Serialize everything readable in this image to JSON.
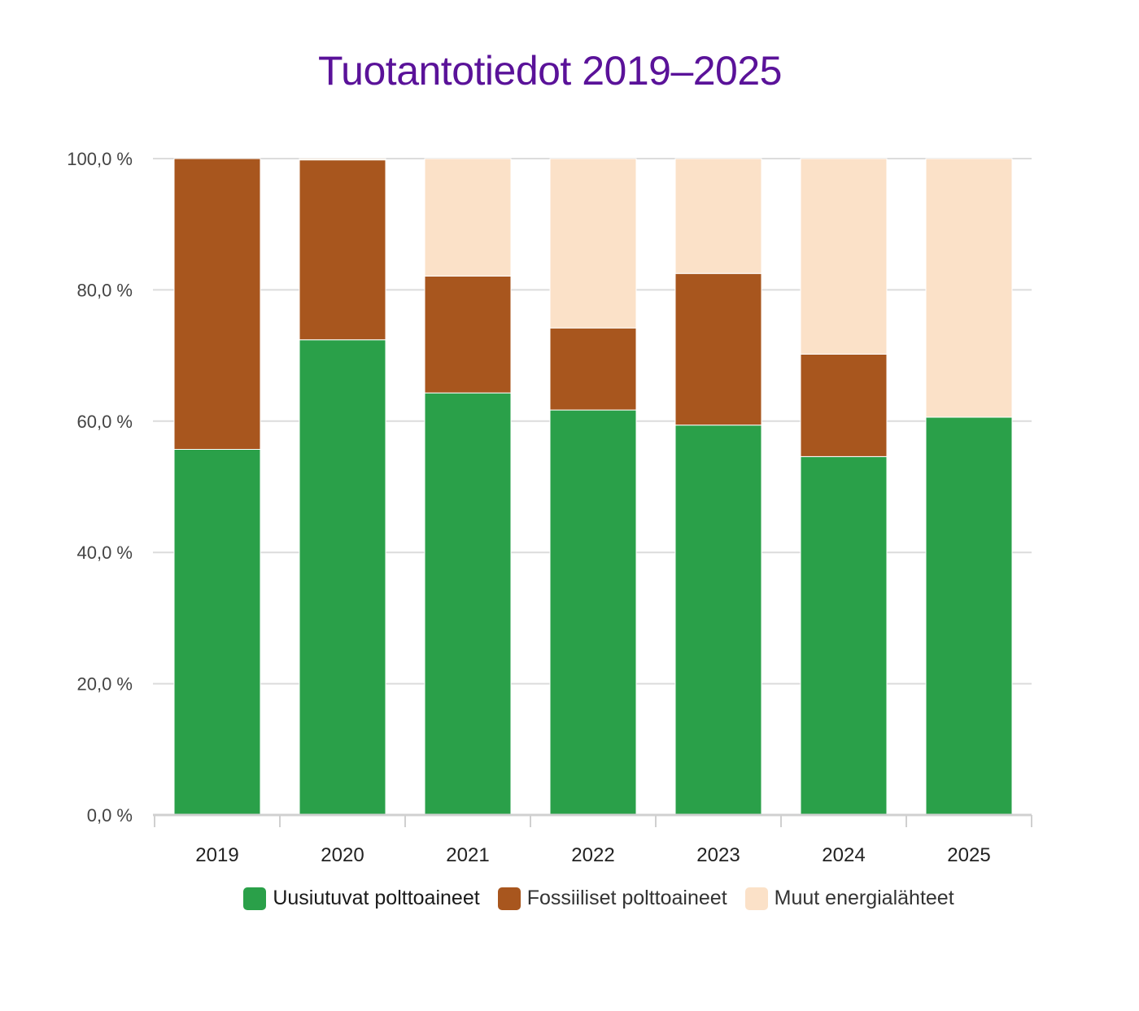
{
  "chart_data": {
    "type": "bar",
    "stacked": true,
    "title": "Tuotantotiedot 2019–2025",
    "categories": [
      "2019",
      "2020",
      "2021",
      "2022",
      "2023",
      "2024",
      "2025"
    ],
    "series": [
      {
        "name": "Uusiutuvat polttoaineet",
        "color": "#2aa049",
        "values": [
          55.7,
          72.4,
          64.3,
          61.7,
          59.4,
          54.6,
          60.6
        ]
      },
      {
        "name": "Fossiiliset polttoaineet",
        "color": "#a8561e",
        "values": [
          44.3,
          27.4,
          17.8,
          12.5,
          23.1,
          15.6,
          0.0
        ]
      },
      {
        "name": "Muut energialähteet",
        "color": "#fbe1c8",
        "values": [
          0.0,
          0.2,
          17.9,
          25.8,
          17.5,
          29.8,
          39.4
        ]
      }
    ],
    "ylim": [
      0,
      100
    ],
    "y_ticks": [
      "0,0 %",
      "20,0 %",
      "40,0 %",
      "60,0 %",
      "80,0 %",
      "100,0 %"
    ],
    "y_tick_values": [
      0,
      20,
      40,
      60,
      80,
      100
    ],
    "grid": true,
    "legend_position": "bottom",
    "xlabel": "",
    "ylabel": ""
  }
}
